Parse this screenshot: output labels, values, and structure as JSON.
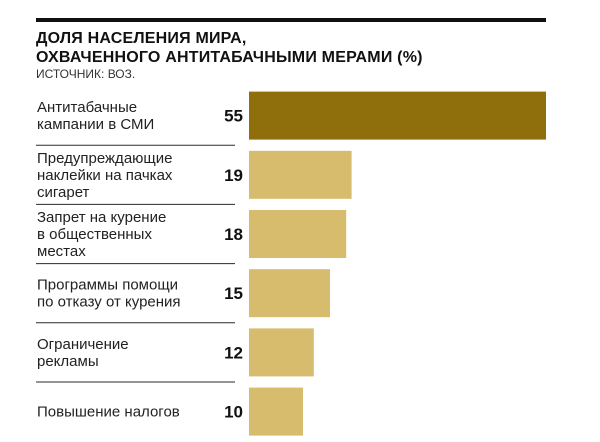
{
  "header": {
    "title_line1": "ДОЛЯ НАСЕЛЕНИЯ МИРА,",
    "title_line2": "ОХВАЧЕННОГО АНТИТАБАЧНЫМИ МЕРАМИ (%)",
    "source": "ИСТОЧНИК: ВОЗ."
  },
  "colors": {
    "highlight_bar": "#8f6f0c",
    "regular_bar": "#d6bc6c",
    "rule": "#111111"
  },
  "chart_data": {
    "type": "bar",
    "orientation": "horizontal",
    "title": "ДОЛЯ НАСЕЛЕНИЯ МИРА, ОХВАЧЕННОГО АНТИТАБАЧНЫМИ МЕРАМИ (%)",
    "xlabel": "",
    "ylabel": "",
    "xlim": [
      0,
      55
    ],
    "grid": false,
    "categories": [
      [
        "Антитабачные",
        "кампании в СМИ"
      ],
      [
        "Предупреждающие",
        "наклейки на пачках",
        "сигарет"
      ],
      [
        "Запрет на курение",
        "в общественных",
        "местах"
      ],
      [
        "Программы помощи",
        "по отказу от курения"
      ],
      [
        "Ограничение",
        "рекламы"
      ],
      [
        "Повышение налогов"
      ]
    ],
    "values": [
      55,
      19,
      18,
      15,
      12,
      10
    ],
    "highlight_index": 0
  }
}
